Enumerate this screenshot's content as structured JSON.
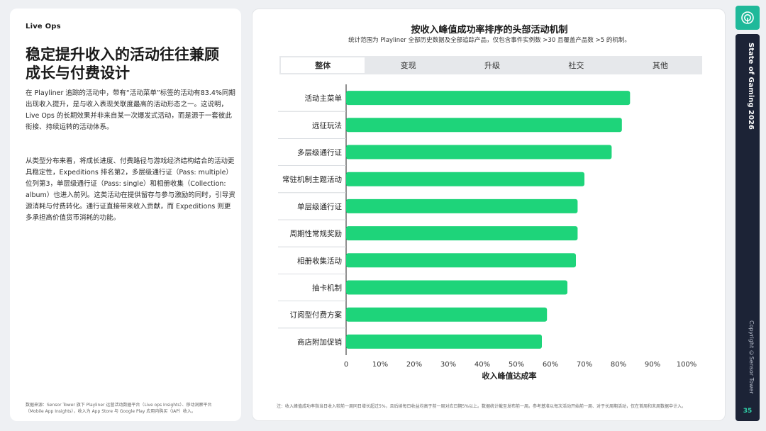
{
  "left": {
    "section_label": "Live Ops",
    "headline": "稳定提升收入的活动往往兼顾成长与付费设计",
    "paragraph_1": "在 Playliner 追踪的活动中，带有“活动菜单”标签的活动有83.4%同期出现收入提升，是与收入表现关联度最高的活动形态之一。这说明，Live Ops 的长期效果并非来自某一次爆发式活动，而是源于一套彼此衔接、持续运转的活动体系。",
    "paragraph_2": "从类型分布来看，将成长进度、付费路径与游戏经济结构结合的活动更具稳定性，Expeditions 排名第2，多层级通行证（Pass: multiple）位列第3，单层级通行证（Pass: single）和相册收集（Collection: album）也进入前列。这类活动在提供留存与参与激励的同时，引导资源消耗与付费转化。通行证直接带来收入贡献，而 Expeditions 则更多承担高价值货币消耗的功能。",
    "source": "数据来源：Sensor Tower 旗下 Playliner 运营活动数据平台（Live ops Insights）、移动洞察平台（Mobile App Insights），收入为 App Store 与 Google Play 应用内购买（IAP）收入。"
  },
  "chart": {
    "title": "按收入峰值成功率排序的头部活动机制",
    "subtitle": "统计范围为 Playliner 全部历史数据及全部追踪产品，仅包含事件实例数 >30 且覆盖产品数 >5 的机制。",
    "tabs": [
      "整体",
      "变现",
      "升级",
      "社交",
      "其他"
    ],
    "active_tab": 0,
    "footnote": "注：收入峰值成功率指当日收入较前一周同日增长超过5%，且后续每日收益均高于前一周对应日期5%以上。数据统计截至发布前一周。参考基准以每次活动开始前一周、对于长周期活动，仅在首周和末周数据中计入。",
    "bar_color": "#1ed47a"
  },
  "chart_data": {
    "type": "bar",
    "orientation": "horizontal",
    "categories": [
      "活动主菜单",
      "远征玩法",
      "多层级通行证",
      "常驻机制主题活动",
      "单层级通行证",
      "周期性常规奖励",
      "相册收集活动",
      "抽卡机制",
      "订阅型付费方案",
      "商店附加促销"
    ],
    "values": [
      83.4,
      81,
      78,
      70,
      68,
      68,
      67.5,
      65,
      59,
      57.5
    ],
    "title": "按收入峰值成功率排序的头部活动机制",
    "xlabel": "收入峰值达成率",
    "ylabel": "",
    "xlim": [
      0,
      100
    ],
    "x_ticks": [
      "0",
      "10%",
      "20%",
      "30%",
      "40%",
      "50%",
      "60%",
      "70%",
      "80%",
      "90%",
      "100%"
    ],
    "grid": false
  },
  "side": {
    "title": "State of Gaming 2026",
    "copyright": "Copyright ©Sensor Tower",
    "page_number": "35",
    "logo": "sensor-tower-logo-icon"
  }
}
